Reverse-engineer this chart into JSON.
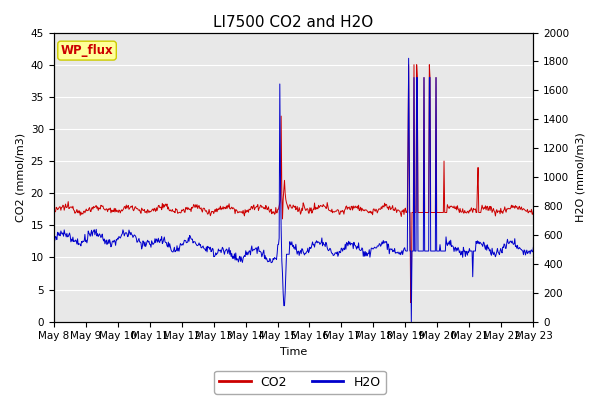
{
  "title": "LI7500 CO2 and H2O",
  "xlabel": "Time",
  "ylabel_left": "CO2 (mmol/m3)",
  "ylabel_right": "H2O (mmol/m3)",
  "ylim_left": [
    0,
    45
  ],
  "ylim_right": [
    0,
    2000
  ],
  "yticks_left": [
    0,
    5,
    10,
    15,
    20,
    25,
    30,
    35,
    40,
    45
  ],
  "yticks_right": [
    0,
    200,
    400,
    600,
    800,
    1000,
    1200,
    1400,
    1600,
    1800,
    2000
  ],
  "background_color": "#e8e8e8",
  "co2_color": "#cc0000",
  "h2o_color": "#0000cc",
  "legend_label_co2": "CO2",
  "legend_label_h2o": "H2O",
  "annotation_text": "WP_flux",
  "annotation_bg": "#ffff99",
  "annotation_border": "#cccc00",
  "title_fontsize": 11,
  "axis_fontsize": 8,
  "tick_fontsize": 7.5
}
